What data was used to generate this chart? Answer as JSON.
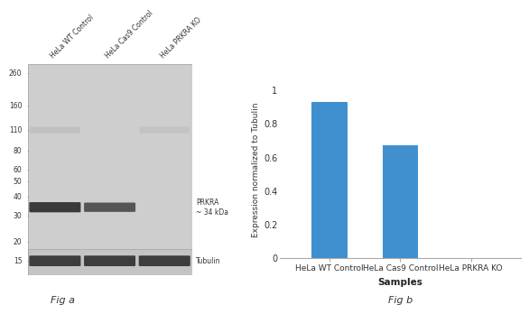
{
  "fig_title_a": "Fig a",
  "fig_title_b": "Fig b",
  "bar_categories": [
    "HeLa WT Control",
    "HeLa Cas9 Control",
    "HeLa PRKRA KO"
  ],
  "bar_values": [
    0.93,
    0.67,
    0.0
  ],
  "bar_color": "#4090D0",
  "ylabel": "Expression normalized to Tubulin",
  "xlabel": "Samples",
  "ylim": [
    0,
    1.05
  ],
  "yticks": [
    0,
    0.2,
    0.4,
    0.6,
    0.8,
    1.0
  ],
  "background_color": "#ffffff",
  "wb_sample_labels": [
    "HeLa WT Control",
    "HeLa Cas9 Control",
    "HeLa PRKRA KO"
  ],
  "wb_mw_labels": [
    "260",
    "160",
    "110",
    "80",
    "60",
    "50",
    "40",
    "30",
    "20",
    "15"
  ],
  "wb_mw_values": [
    260,
    160,
    110,
    80,
    60,
    50,
    40,
    30,
    20,
    15
  ],
  "prkra_label": "PRKRA\n~ 34 kDa",
  "tubulin_label": "Tubulin",
  "wb_bg_color": "#d0d0d0",
  "wb_band_dark": "#2a2a2a",
  "wb_band_med": "#3a3a3a",
  "wb_faint": "#aaaaaa"
}
